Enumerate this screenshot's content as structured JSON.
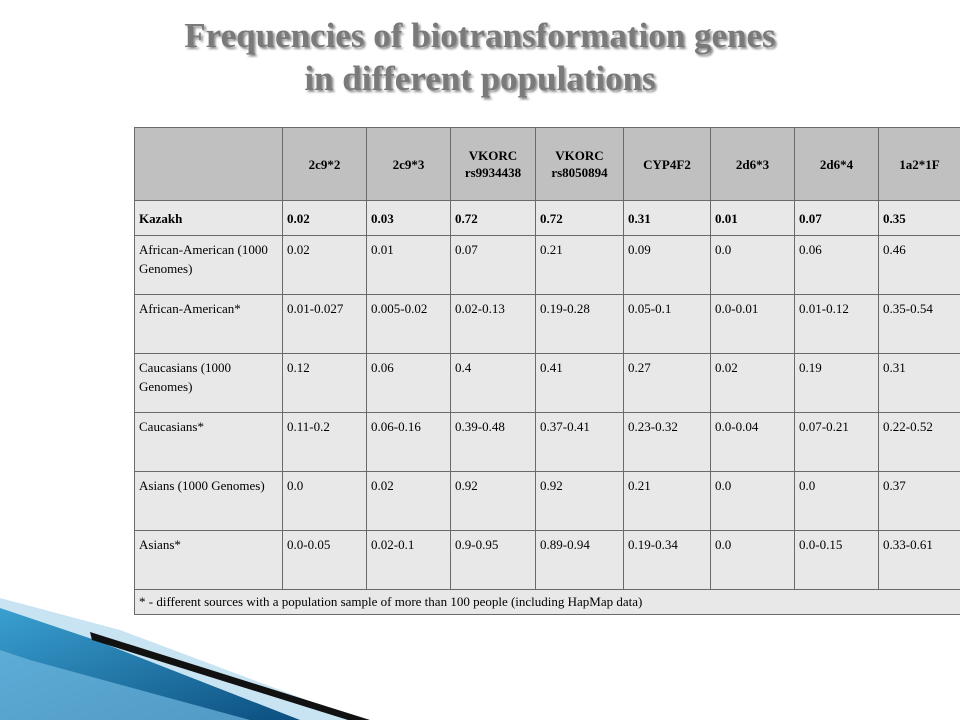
{
  "title": {
    "line1": "Frequencies of biotransformation genes",
    "line2": "in different populations"
  },
  "table": {
    "headers": [
      "",
      "2c9*2",
      "2c9*3",
      "VKORC rs9934438",
      "VKORC rs8050894",
      "CYP4F2",
      "2d6*3",
      "2d6*4",
      "1a2*1F"
    ],
    "rows": [
      [
        "Kazakh",
        "0.02",
        "0.03",
        "0.72",
        "0.72",
        "0.31",
        "0.01",
        "0.07",
        "0.35"
      ],
      [
        "African-American (1000 Genomes)",
        "0.02",
        "0.01",
        "0.07",
        "0.21",
        "0.09",
        "0.0",
        "0.06",
        "0.46"
      ],
      [
        "African-American*",
        "0.01-0.027",
        "0.005-0.02",
        "0.02-0.13",
        "0.19-0.28",
        "0.05-0.1",
        "0.0-0.01",
        "0.01-0.12",
        "0.35-0.54"
      ],
      [
        "Caucasians (1000 Genomes)",
        "0.12",
        "0.06",
        "0.4",
        "0.41",
        "0.27",
        "0.02",
        "0.19",
        "0.31"
      ],
      [
        "Caucasians*",
        "0.11-0.2",
        "0.06-0.16",
        "0.39-0.48",
        "0.37-0.41",
        "0.23-0.32",
        "0.0-0.04",
        "0.07-0.21",
        "0.22-0.52"
      ],
      [
        "Asians (1000 Genomes)",
        "0.0",
        "0.02",
        "0.92",
        "0.92",
        "0.21",
        "0.0",
        "0.0",
        "0.37"
      ],
      [
        "Asians*",
        "0.0-0.05",
        "0.02-0.1",
        "0.9-0.95",
        "0.89-0.94",
        "0.19-0.34",
        "0.0",
        "0.0-0.15",
        "0.33-0.61"
      ]
    ],
    "note": "* - different sources with a population sample of more than 100 people (including HapMap data)"
  },
  "colors": {
    "header_bg": "#c0c0c0",
    "cell_bg": "#e8e8e8",
    "title": "#7a7a7a",
    "accent_blue": "#1f7fb5"
  }
}
